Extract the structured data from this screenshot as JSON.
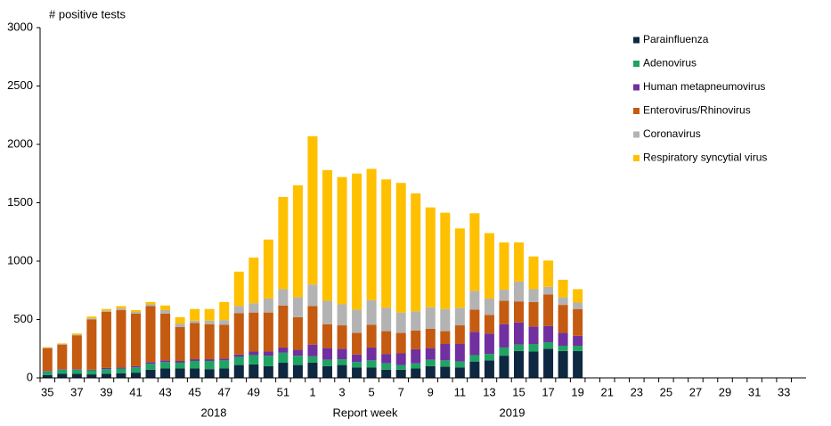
{
  "chart_data": {
    "type": "stacked_bar",
    "title": "# positive tests",
    "x_label": "Report week",
    "annotations": [
      "2018",
      "2019"
    ],
    "categories": [
      "35",
      null,
      "37",
      null,
      "39",
      null,
      "41",
      null,
      "43",
      null,
      "45",
      null,
      "47",
      null,
      "49",
      null,
      "51",
      null,
      "1",
      null,
      "3",
      null,
      "5",
      null,
      "7",
      null,
      "9",
      null,
      "11",
      null,
      "13",
      null,
      "15",
      null,
      "17",
      null,
      "19",
      null,
      "21",
      null,
      "23",
      null,
      "25",
      null,
      "27",
      null,
      "29",
      null,
      "31",
      null,
      "33",
      null
    ],
    "series": [
      {
        "name": "Parainfluenza",
        "color": "#0e2841",
        "values": [
          25,
          35,
          35,
          30,
          35,
          40,
          45,
          70,
          80,
          80,
          80,
          75,
          80,
          110,
          115,
          100,
          130,
          110,
          130,
          100,
          110,
          90,
          90,
          70,
          70,
          80,
          100,
          95,
          90,
          140,
          150,
          190,
          230,
          225,
          250,
          230,
          230,
          null,
          null,
          null,
          null,
          null,
          null,
          null,
          null,
          null,
          null,
          null,
          null,
          null,
          null,
          null
        ]
      },
      {
        "name": "Adenovirus",
        "color": "#1fa463",
        "values": [
          30,
          35,
          35,
          35,
          40,
          40,
          45,
          50,
          55,
          50,
          65,
          70,
          70,
          70,
          80,
          90,
          85,
          80,
          55,
          55,
          50,
          45,
          60,
          55,
          40,
          45,
          55,
          55,
          50,
          55,
          55,
          70,
          55,
          65,
          55,
          45,
          45,
          null,
          null,
          null,
          null,
          null,
          null,
          null,
          null,
          null,
          null,
          null,
          null,
          null,
          null,
          null
        ]
      },
      {
        "name": "Human metapneumovirus",
        "color": "#7030a0",
        "values": [
          5,
          5,
          5,
          5,
          10,
          10,
          10,
          15,
          15,
          15,
          15,
          15,
          15,
          20,
          30,
          35,
          45,
          50,
          100,
          100,
          90,
          65,
          110,
          80,
          100,
          120,
          100,
          140,
          150,
          200,
          175,
          200,
          190,
          150,
          140,
          110,
          85,
          null,
          null,
          null,
          null,
          null,
          null,
          null,
          null,
          null,
          null,
          null,
          null,
          null,
          null,
          null
        ]
      },
      {
        "name": "Enterovirus/Rhinovirus",
        "color": "#c55a11",
        "values": [
          195,
          210,
          290,
          430,
          480,
          490,
          450,
          480,
          400,
          290,
          310,
          300,
          290,
          355,
          335,
          335,
          360,
          280,
          330,
          205,
          200,
          185,
          195,
          195,
          175,
          160,
          165,
          110,
          160,
          190,
          160,
          200,
          180,
          210,
          270,
          240,
          230,
          null,
          null,
          null,
          null,
          null,
          null,
          null,
          null,
          null,
          null,
          null,
          null,
          null,
          null,
          null
        ]
      },
      {
        "name": "Coronavirus",
        "color": "#b3b3b3",
        "values": [
          3,
          5,
          5,
          10,
          10,
          15,
          15,
          15,
          30,
          30,
          20,
          30,
          40,
          60,
          80,
          120,
          140,
          170,
          185,
          200,
          180,
          200,
          210,
          200,
          175,
          165,
          185,
          190,
          150,
          160,
          140,
          95,
          170,
          110,
          65,
          65,
          55,
          null,
          null,
          null,
          null,
          null,
          null,
          null,
          null,
          null,
          null,
          null,
          null,
          null,
          null,
          null
        ]
      },
      {
        "name": "Respiratory syncytial virus",
        "color": "#ffc000",
        "values": [
          5,
          5,
          10,
          15,
          15,
          20,
          15,
          20,
          40,
          55,
          100,
          100,
          155,
          295,
          390,
          505,
          790,
          960,
          1270,
          1120,
          1090,
          1165,
          1125,
          1100,
          1110,
          1010,
          855,
          825,
          680,
          665,
          560,
          405,
          335,
          280,
          225,
          150,
          115,
          null,
          null,
          null,
          null,
          null,
          null,
          null,
          null,
          null,
          null,
          null,
          null,
          null,
          null,
          null
        ]
      }
    ],
    "ylim": [
      0,
      3000
    ],
    "yticks": [
      0,
      500,
      1000,
      1500,
      2000,
      2500,
      3000
    ],
    "grid": false,
    "legend": "top-right"
  }
}
